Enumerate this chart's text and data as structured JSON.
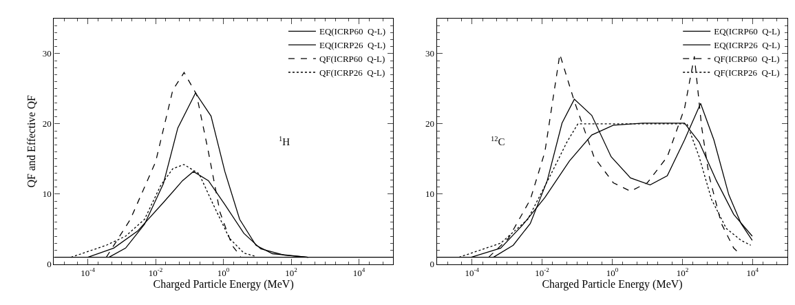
{
  "chart_data": [
    {
      "type": "line",
      "xlabel": "Charged Particle Energy (MeV)",
      "ylabel": "QF and Effective QF",
      "log": "x",
      "xlim": [
        1e-05,
        100000.0
      ],
      "ylim": [
        0,
        35
      ],
      "xticks": [
        {
          "value": 0.0001,
          "label": "10$^{-4}$"
        },
        {
          "value": 0.01,
          "label": "10$^{-2}$"
        },
        {
          "value": 1,
          "label": "10$^{0}$"
        },
        {
          "value": 100,
          "label": "10$^{2}$"
        },
        {
          "value": 10000.0,
          "label": "10$^{4}$"
        }
      ],
      "yticks": [
        0,
        10,
        20,
        30
      ],
      "legend": "top right",
      "annotations": [
        "$^{1}$H"
      ],
      "ref_lines": [
        {
          "axis": "y",
          "value": 1,
          "color": "#000000"
        }
      ],
      "series": [
        {
          "name": "EQ(ICRP60  Q-L)",
          "color": "#000000",
          "line_style": "solid",
          "x": [
            0.0001,
            0.00058,
            0.0029,
            0.017,
            0.062,
            0.13,
            0.36,
            1.1,
            4,
            12.6,
            63,
            316
          ],
          "values": [
            1,
            2.3,
            4.7,
            8.8,
            11.9,
            13.2,
            11.9,
            8.5,
            4.4,
            2.2,
            1.3,
            1
          ]
        },
        {
          "name": "EQ(ICRP26  Q-L)",
          "color": "#000000",
          "line_style": "solid",
          "x": [
            0.00042,
            0.0013,
            0.0047,
            0.017,
            0.045,
            0.15,
            0.43,
            1.1,
            3,
            9.1,
            28,
            316
          ],
          "values": [
            1,
            2.3,
            5.7,
            11.5,
            19.4,
            24.4,
            21.1,
            13.2,
            6.4,
            2.7,
            1.5,
            1
          ]
        },
        {
          "name": "QF(ICRP60  Q-L)",
          "color": "#000000",
          "line_style": "dashed",
          "x": [
            0.00035,
            0.0018,
            0.01,
            0.032,
            0.069,
            0.16,
            0.36,
            0.79,
            1.8,
            3.2
          ],
          "values": [
            1,
            6.4,
            14.6,
            24.8,
            27.3,
            24.2,
            16,
            7.4,
            2.7,
            1.1
          ]
        },
        {
          "name": "QF(ICRP26  Q-L)",
          "color": "#000000",
          "line_style": "dotted",
          "x": [
            3.2e-05,
            0.00035,
            0.0013,
            0.0047,
            0.014,
            0.032,
            0.068,
            0.19,
            0.5,
            1.5,
            4,
            9.1
          ],
          "values": [
            1,
            2.7,
            4,
            6.4,
            11.2,
            13.6,
            14.2,
            12.9,
            8.5,
            3.7,
            1.6,
            1.1
          ]
        }
      ]
    },
    {
      "type": "line",
      "xlabel": "Charged Particle Energy (MeV)",
      "log": "x",
      "xlim": [
        1e-05,
        100000.0
      ],
      "ylim": [
        0,
        35
      ],
      "xticks": [
        {
          "value": 0.0001,
          "label": "10$^{-4}$"
        },
        {
          "value": 0.01,
          "label": "10$^{-2}$"
        },
        {
          "value": 1,
          "label": "10$^{0}$"
        },
        {
          "value": 100,
          "label": "10$^{2}$"
        },
        {
          "value": 10000.0,
          "label": "10$^{4}$"
        }
      ],
      "yticks": [
        0,
        10,
        20,
        30
      ],
      "legend": "top right",
      "annotations": [
        "$^{12}$C"
      ],
      "ref_lines": [
        {
          "axis": "y",
          "value": 1,
          "color": "#000000"
        }
      ],
      "series": [
        {
          "name": "EQ(ICRP60  Q-L)",
          "color": "#000000",
          "line_style": "solid",
          "x": [
            9.5e-05,
            0.00066,
            0.0028,
            0.012,
            0.06,
            0.26,
            1.07,
            7.4,
            115,
            300,
            930,
            2900,
            9800
          ],
          "values": [
            1,
            2.3,
            5.6,
            9.5,
            14.7,
            18.4,
            19.8,
            20.1,
            20.1,
            17.4,
            11.9,
            7.1,
            4
          ]
        },
        {
          "name": "EQ(ICRP26  Q-L)",
          "color": "#000000",
          "line_style": "solid",
          "x": [
            0.00041,
            0.0015,
            0.0046,
            0.014,
            0.037,
            0.083,
            0.26,
            0.93,
            3.3,
            12,
            37,
            115,
            330,
            790,
            2100,
            4700,
            9800
          ],
          "values": [
            1,
            2.7,
            5.8,
            11.9,
            20.1,
            23.5,
            21.2,
            15.3,
            12.3,
            11.3,
            12.6,
            17.7,
            22.9,
            17.7,
            9.9,
            5.8,
            3.4
          ]
        },
        {
          "name": "QF(ICRP60  Q-L)",
          "color": "#000000",
          "line_style": "dashed",
          "x": [
            0.0003,
            0.0011,
            0.0046,
            0.012,
            0.032,
            0.083,
            0.3,
            1.07,
            3.3,
            10,
            37,
            115,
            219,
            355,
            575,
            1290,
            2900,
            4700
          ],
          "values": [
            1,
            3.7,
            9.2,
            16,
            29.9,
            23.2,
            15.3,
            11.6,
            10.4,
            11.6,
            15.3,
            22.2,
            29.6,
            19.5,
            12.6,
            5.8,
            2.3,
            1.3
          ]
        },
        {
          "name": "QF(ICRP26  Q-L)",
          "color": "#000000",
          "line_style": "dotted",
          "x": [
            4.3e-05,
            0.00066,
            0.0039,
            0.017,
            0.051,
            0.105,
            135,
            300,
            680,
            1780,
            4700,
            8900
          ],
          "values": [
            1,
            3,
            6.4,
            12.6,
            17.4,
            20,
            20,
            15.3,
            9.2,
            5.1,
            3.4,
            2.7
          ]
        }
      ]
    }
  ]
}
